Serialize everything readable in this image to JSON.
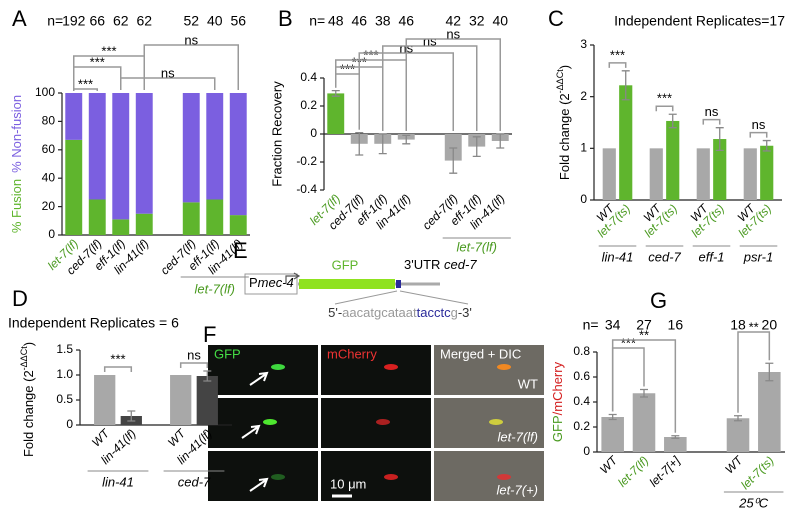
{
  "chart_data": [
    {
      "panel": "A",
      "type": "stacked_bar",
      "n_label": "n=",
      "n": [
        192,
        66,
        62,
        62,
        null,
        52,
        40,
        56
      ],
      "categories": [
        "let-7(lf)",
        "ced-7(lf)",
        "eff-1(lf)",
        "lin-41(lf)",
        null,
        "ced-7(lf)",
        "eff-1(lf)",
        "lin-41(lf)"
      ],
      "category_colors": [
        "#4a9a20",
        "#000000",
        "#000000",
        "#000000",
        null,
        "#000000",
        "#000000",
        "#000000"
      ],
      "series": [
        {
          "name": "% Fusion",
          "color": "#5fb52d",
          "values": [
            67,
            25,
            11,
            15,
            null,
            23,
            25,
            14
          ]
        },
        {
          "name": "% Non-fusion",
          "color": "#7b5fe0",
          "values": [
            33,
            75,
            89,
            85,
            null,
            77,
            75,
            86
          ]
        }
      ],
      "ylim": [
        0,
        100
      ],
      "yticks": [
        0,
        20,
        40,
        60,
        80,
        100
      ],
      "comparisons": [
        {
          "bars": [
            0,
            1
          ],
          "label": "***"
        },
        {
          "bars": [
            2,
            6
          ],
          "label": "ns"
        },
        {
          "bars": [
            0,
            2
          ],
          "label": "***"
        },
        {
          "bars": [
            0,
            3
          ],
          "label": "***"
        },
        {
          "bars": [
            3,
            7
          ],
          "label": "ns"
        }
      ],
      "group_label": "let-7(lf)",
      "group_bars": [
        5,
        7
      ],
      "group_label_color": "#4a9a20"
    },
    {
      "panel": "B",
      "type": "bar",
      "n_label": "n=",
      "n": [
        48,
        46,
        38,
        46,
        null,
        42,
        32,
        40
      ],
      "ylabel": "Fraction Recovery",
      "categories": [
        "let-7(lf)",
        "ced-7(lf)",
        "eff-1(lf)",
        "lin-41(lf)",
        null,
        "ced-7(lf)",
        "eff-1(lf)",
        "lin-41(lf)"
      ],
      "category_colors": [
        "#4a9a20",
        "#000000",
        "#000000",
        "#000000",
        null,
        "#000000",
        "#000000",
        "#000000"
      ],
      "values": [
        0.29,
        -0.07,
        -0.07,
        -0.04,
        null,
        -0.19,
        -0.09,
        -0.05
      ],
      "errors": [
        0.02,
        0.08,
        0.07,
        0.03,
        null,
        0.09,
        0.07,
        0.05
      ],
      "colors": [
        "#5fb52d",
        "#a8a8a8",
        "#a8a8a8",
        "#a8a8a8",
        null,
        "#a8a8a8",
        "#a8a8a8",
        "#a8a8a8"
      ],
      "ylim": [
        -0.4,
        0.4
      ],
      "yticks": [
        -0.4,
        -0.2,
        0,
        0.2,
        0.4
      ],
      "comparisons": [
        {
          "bars": [
            0,
            1
          ],
          "label": "***"
        },
        {
          "bars": [
            0,
            2
          ],
          "label": "***"
        },
        {
          "bars": [
            0,
            3
          ],
          "label": "***"
        },
        {
          "bars": [
            1,
            5
          ],
          "label": "ns"
        },
        {
          "bars": [
            2,
            6
          ],
          "label": "ns"
        },
        {
          "bars": [
            3,
            7
          ],
          "label": "ns"
        }
      ],
      "group_label": "let-7(lf)",
      "group_bars": [
        5,
        7
      ],
      "group_label_color": "#4a9a20"
    },
    {
      "panel": "C",
      "type": "grouped_bar",
      "title": "Independent Replicates=17",
      "ylabel_parts": [
        {
          "text": "Fold change (2"
        },
        {
          "text": "-ΔΔCt",
          "superscript": true
        },
        {
          "text": ")"
        }
      ],
      "categories": [
        "lin-41",
        "ced-7",
        "eff-1",
        "psr-1"
      ],
      "series": [
        {
          "name": "WT",
          "color": "#a8a8a8",
          "label_color": "#000000",
          "values": [
            1,
            1,
            1,
            1
          ]
        },
        {
          "name": "let-7(ts)",
          "color": "#5fb52d",
          "label_color": "#4a9a20",
          "values": [
            2.22,
            1.53,
            1.18,
            1.05
          ],
          "errors": [
            0.28,
            0.13,
            0.22,
            0.1
          ]
        }
      ],
      "ylim": [
        0,
        3
      ],
      "yticks": [
        0,
        1,
        2,
        3
      ],
      "significance": [
        "***",
        "***",
        "ns",
        "ns"
      ]
    },
    {
      "panel": "D",
      "type": "grouped_bar",
      "title": "Independent Replicates = 6",
      "ylabel_parts": [
        {
          "text": "Fold change (2"
        },
        {
          "text": "-ΔΔCt",
          "superscript": true
        },
        {
          "text": ")"
        }
      ],
      "categories": [
        "lin-41",
        "ced-7"
      ],
      "series": [
        {
          "name": "WT",
          "color": "#a8a8a8",
          "label_color": "#000000",
          "values": [
            1,
            1
          ]
        },
        {
          "name": "lin-41(lf)",
          "color": "#444444",
          "label_color": "#000000",
          "values": [
            0.18,
            0.98
          ],
          "errors": [
            0.1,
            0.1
          ]
        }
      ],
      "ylim": [
        0,
        1.5
      ],
      "yticks": [
        0,
        0.5,
        {
          "value": 1,
          "label": "1.0"
        },
        1.5
      ],
      "significance": [
        "***",
        "ns"
      ]
    },
    {
      "panel": "G",
      "type": "bar",
      "n_label": "n=",
      "n": [
        34,
        27,
        16,
        null,
        18,
        20
      ],
      "ylabel_parts": [
        {
          "text": "GFP",
          "color": "#4a9a20"
        },
        {
          "text": "/mCherry",
          "color": "#d42020"
        }
      ],
      "categories": [
        "WT",
        "let-7(lf)",
        "let-7[+]",
        null,
        "WT",
        "let-7(ts)"
      ],
      "category_colors": [
        "#000000",
        "#4a9a20",
        "#000000",
        null,
        "#000000",
        "#4a9a20"
      ],
      "values": [
        0.28,
        0.47,
        0.12,
        null,
        0.27,
        0.64
      ],
      "errors": [
        0.02,
        0.03,
        0.01,
        null,
        0.02,
        0.07
      ],
      "colors": [
        "#a8a8a8",
        "#a8a8a8",
        "#a8a8a8",
        null,
        "#a8a8a8",
        "#a8a8a8"
      ],
      "ylim": [
        0,
        0.8
      ],
      "yticks": [
        0,
        0.2,
        0.4,
        0.6,
        0.8
      ],
      "comparisons": [
        {
          "bars": [
            0,
            1
          ],
          "label": "***"
        },
        {
          "bars": [
            0,
            2
          ],
          "label": "**"
        },
        {
          "bars": [
            4,
            5
          ],
          "label": "**"
        }
      ],
      "group_label": "25⁰C",
      "group_bars": [
        4,
        5
      ],
      "group_label_color": "#000000"
    }
  ],
  "panel_e": {
    "label": "E",
    "promoter_prefix": "P",
    "promoter": "mec-4",
    "gene": "GFP",
    "utr_prefix": "3'UTR ",
    "utr_gene": "ced-7",
    "sequence_parts": [
      {
        "text": "5'-",
        "color": "#333333"
      },
      {
        "text": "aacatgcataat",
        "color": "#999999"
      },
      {
        "text": "tacctc",
        "color": "#2a2a9a"
      },
      {
        "text": "g",
        "color": "#999999"
      },
      {
        "text": "-3'",
        "color": "#333333"
      }
    ]
  },
  "panel_f": {
    "label": "F",
    "columns": [
      "GFP",
      "mCherry",
      "Merged + DIC"
    ],
    "column_colors": [
      "#44dd44",
      "#ee3333",
      "#ffffff"
    ],
    "rows": [
      "WT",
      "let-7(lf)",
      "let-7(+)"
    ],
    "row_italic": [
      false,
      true,
      true
    ],
    "scale_bar": "10 μm"
  }
}
